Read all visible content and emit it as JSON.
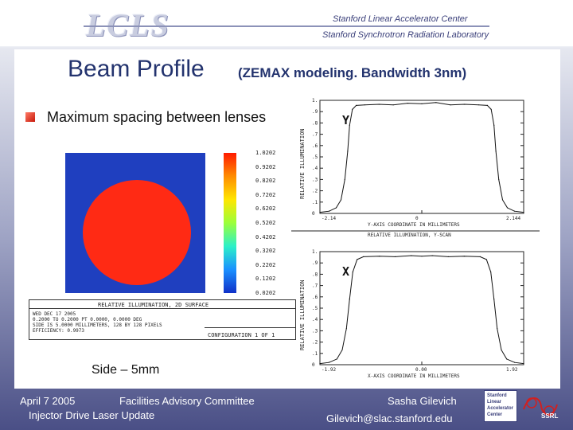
{
  "header": {
    "logo_text": "LCLS",
    "org_line1": "Stanford Linear Accelerator Center",
    "org_line2": "Stanford Synchrotron Radiation Laboratory"
  },
  "slide": {
    "title": "Beam Profile",
    "subtitle": "(ZEMAX modeling. Bandwidth 3nm)",
    "bullet": "Maximum spacing between lenses",
    "side_label": "Side – 5mm"
  },
  "beam_map": {
    "colorbar_ticks": [
      "1.0202",
      "0.9202",
      "0.8202",
      "0.7202",
      "0.6202",
      "0.5202",
      "0.4202",
      "0.3202",
      "0.2202",
      "0.1202",
      "0.0202"
    ],
    "colors": {
      "background": "#1f3fbf",
      "spot": "#ff2a14"
    },
    "info_header": "RELATIVE ILLUMINATION, 2D SURFACE",
    "info_lines": [
      "WED DEC 17 2005",
      "0.2000 TO 0.2000 PT 0.0000, 0.0000 DEG",
      "SIDE IS 5.0000 MILLIMETERS, 128 BY 128 PIXELS",
      "EFFICIENCY: 0.9973"
    ],
    "config_text": "CONFIGURATION 1 OF 1"
  },
  "chart_data": [
    {
      "type": "line",
      "title": "Y",
      "ylabel": "RELATIVE ILLUMINATION",
      "xlabel": "Y-AXIS COORDINATE IN MILLIMETERS",
      "footer": "RELATIVE ILLUMINATION, Y-SCAN",
      "xlim": [
        -2.144,
        2.144
      ],
      "ylim": [
        0,
        1
      ],
      "x_tick_labels": [
        "-2.14",
        "0",
        "2.144"
      ],
      "y_tick_labels": [
        "1.",
        ".9",
        ".8",
        ".7",
        ".6",
        ".5",
        ".4",
        ".3",
        ".2",
        ".1",
        "0"
      ],
      "x": [
        -2.144,
        -1.95,
        -1.8,
        -1.7,
        -1.62,
        -1.56,
        -1.52,
        -1.46,
        -1.38,
        -1.2,
        -0.9,
        -0.6,
        -0.3,
        0,
        0.3,
        0.6,
        0.9,
        1.2,
        1.38,
        1.46,
        1.52,
        1.56,
        1.62,
        1.7,
        1.8,
        1.95,
        2.144
      ],
      "values": [
        0.01,
        0.02,
        0.05,
        0.12,
        0.3,
        0.55,
        0.78,
        0.92,
        0.955,
        0.96,
        0.965,
        0.96,
        0.975,
        0.97,
        0.98,
        0.96,
        0.965,
        0.96,
        0.955,
        0.92,
        0.78,
        0.55,
        0.3,
        0.12,
        0.05,
        0.02,
        0.01
      ]
    },
    {
      "type": "line",
      "title": "X",
      "ylabel": "RELATIVE ILLUMINATION",
      "xlabel": "X-AXIS COORDINATE IN MILLIMETERS",
      "xlim": [
        -1.92,
        1.92
      ],
      "ylim": [
        0,
        1
      ],
      "x_tick_labels": [
        "-1.92",
        "0.00",
        "1.92"
      ],
      "y_tick_labels": [
        "1.",
        ".9",
        ".8",
        ".7",
        ".6",
        ".5",
        ".4",
        ".3",
        ".2",
        ".1",
        "0"
      ],
      "x": [
        -1.92,
        -1.75,
        -1.6,
        -1.5,
        -1.42,
        -1.36,
        -1.3,
        -1.22,
        -1.1,
        -0.8,
        -0.5,
        -0.2,
        0,
        0.2,
        0.5,
        0.8,
        1.1,
        1.22,
        1.3,
        1.36,
        1.42,
        1.5,
        1.6,
        1.75,
        1.92
      ],
      "values": [
        0.01,
        0.02,
        0.05,
        0.13,
        0.32,
        0.58,
        0.82,
        0.93,
        0.955,
        0.96,
        0.955,
        0.965,
        0.96,
        0.965,
        0.955,
        0.96,
        0.955,
        0.93,
        0.82,
        0.58,
        0.32,
        0.13,
        0.05,
        0.02,
        0.01
      ]
    }
  ],
  "footer": {
    "date": "April 7 2005",
    "event": "Facilities Advisory Committee",
    "topic": "Injector Drive Laser Update",
    "presenter": "Sasha Gilevich",
    "email": "Gilevich@slac.stanford.edu",
    "slac_badge": [
      "Stanford",
      "Linear",
      "Accelerator",
      "Center"
    ],
    "ssrl_badge": "SSRL"
  }
}
